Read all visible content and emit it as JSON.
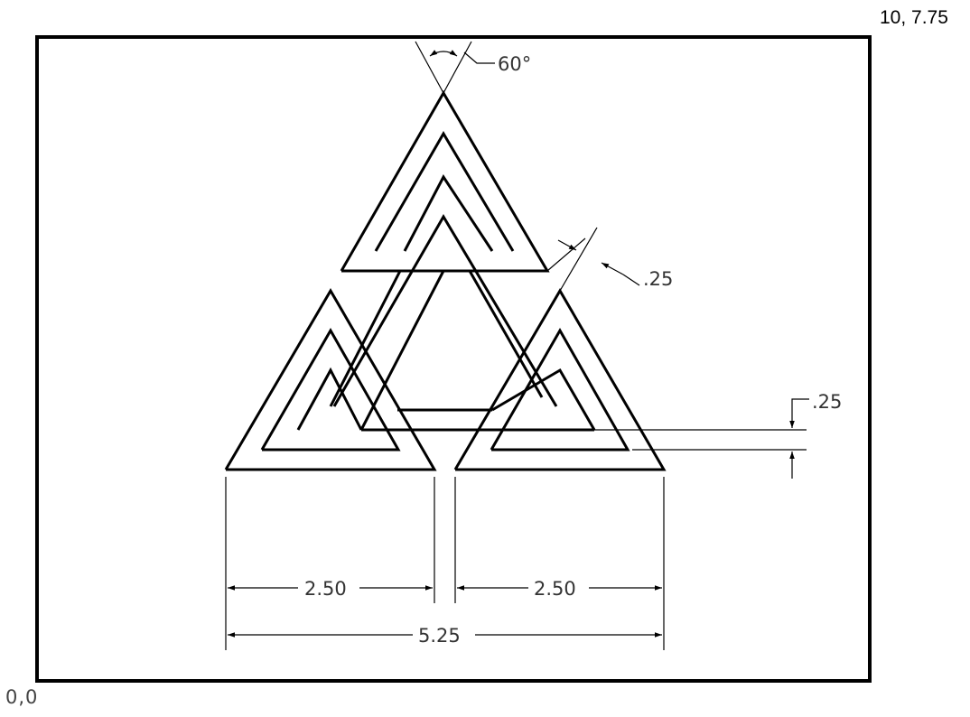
{
  "corners": {
    "top_right": "10, 7.75",
    "bottom_left": "0,0"
  },
  "dimensions": {
    "angle": "60°",
    "band_width_diag": ".25",
    "band_width_vert": ".25",
    "left_width": "2.50",
    "right_width": "2.50",
    "total_width": "5.25"
  },
  "colors": {
    "line": "#000000",
    "dim_line": "#000000",
    "dim_text": "#333333"
  }
}
